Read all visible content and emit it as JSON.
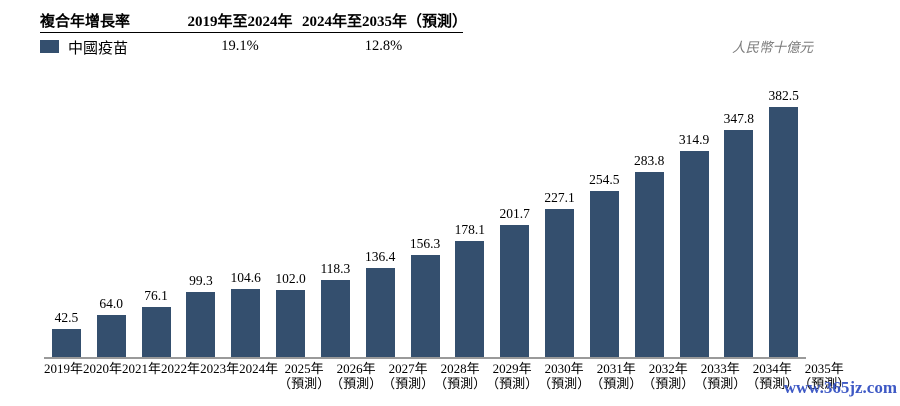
{
  "header": {
    "cagr_label": "複合年增長率",
    "columns": [
      {
        "label": "2019年至2024年",
        "value": "19.1%"
      },
      {
        "label": "2024年至2035年（預測）",
        "value": "12.8%"
      }
    ],
    "legend": {
      "label": "中國疫苗"
    },
    "unit_label": "人民幣十億元"
  },
  "watermark": "www.365jz.com",
  "colors": {
    "bar": "#344f6e",
    "axis_line": "#9a9a9a",
    "unit_text": "#7a7a7a",
    "watermark_text": "#3e59c5"
  },
  "chart_data": {
    "type": "bar",
    "series_name": "中國疫苗",
    "categories": [
      "2019年",
      "2020年",
      "2021年",
      "2022年",
      "2023年",
      "2024年",
      "2025年",
      "2026年",
      "2027年",
      "2028年",
      "2029年",
      "2030年",
      "2031年",
      "2032年",
      "2033年",
      "2034年",
      "2035年"
    ],
    "forecast_note": "（預測）",
    "forecast_start_index": 6,
    "values": [
      42.5,
      64.0,
      76.1,
      99.3,
      104.6,
      102.0,
      118.3,
      136.4,
      156.3,
      178.1,
      201.7,
      227.1,
      254.5,
      283.8,
      314.9,
      347.8,
      382.5
    ],
    "value_decimals": 1,
    "ylabel": "人民幣十億元",
    "ylim": [
      0,
      400
    ],
    "grid": false,
    "legend_position": "top-left",
    "cagr": [
      {
        "period": "2019年至2024年",
        "value_pct": 19.1
      },
      {
        "period": "2024年至2035年（預測）",
        "value_pct": 12.8
      }
    ]
  }
}
